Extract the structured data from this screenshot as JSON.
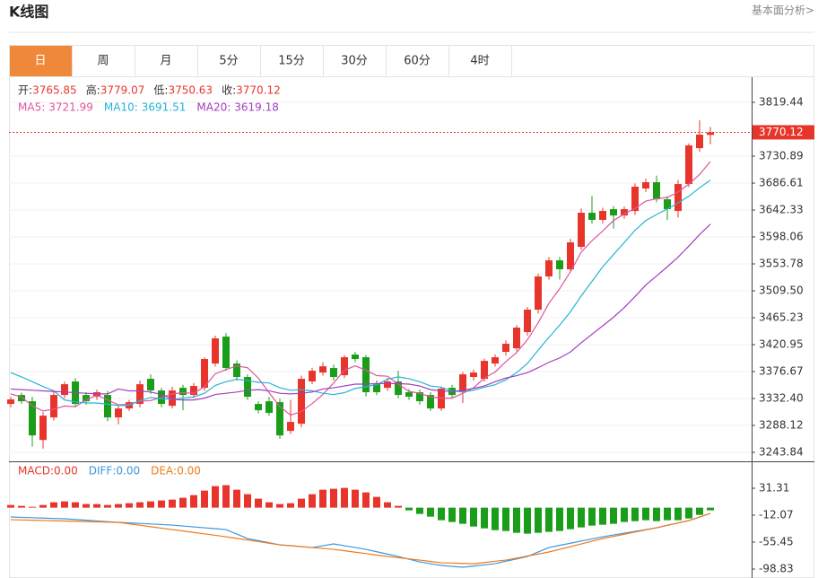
{
  "header": {
    "title": "K线图",
    "link": "基本面分析>"
  },
  "tabs": [
    "日",
    "周",
    "月",
    "5分",
    "15分",
    "30分",
    "60分",
    "4时"
  ],
  "active_tab": 0,
  "chart_data": [
    {
      "type": "candlestick",
      "ohlc_labels": [
        "开",
        "高",
        "低",
        "收"
      ],
      "legend_separator": ":",
      "up_color": "#e8352b",
      "down_color": "#1a9e1a",
      "open": [
        3323.5,
        3338.2,
        3327.9,
        3264.3,
        3301.3,
        3338.2,
        3360.4,
        3338.2,
        3335.3,
        3338.2,
        3301.3,
        3316,
        3323.5,
        3364.8,
        3345.6,
        3320.5,
        3350,
        3338.2,
        3350,
        3389.9,
        3434.2,
        3389.9,
        3367.8,
        3323.5,
        3327.9,
        3326.4,
        3279.1,
        3290.9,
        3360.4,
        3375.1,
        3382.5,
        3370.7,
        3404.7,
        3400.3,
        3355.9,
        3350,
        3360.4,
        3342.7,
        3342.7,
        3338.2,
        3316,
        3350,
        3342.7,
        3367.8,
        3364.8,
        3389.9,
        3409.1,
        3415,
        3441.6,
        3478.5,
        3533.1,
        3559.6,
        3544.9,
        3581.8,
        3637.9,
        3626.1,
        3643.8,
        3633.4,
        3640.8,
        3677.7,
        3688.1,
        3660,
        3640.8,
        3685.1,
        3744.1,
        3765.85
      ],
      "high": [
        3335,
        3342,
        3335,
        3310,
        3345,
        3360,
        3366,
        3343,
        3347,
        3345,
        3320,
        3330,
        3362,
        3372,
        3350,
        3352,
        3355,
        3358,
        3400,
        3436,
        3440,
        3395,
        3372,
        3328,
        3335,
        3332,
        3330,
        3370,
        3383,
        3392,
        3388,
        3404,
        3409,
        3404,
        3362,
        3366,
        3378,
        3348,
        3347,
        3343,
        3352,
        3355,
        3376,
        3380,
        3398,
        3405,
        3428,
        3453,
        3483,
        3538,
        3565,
        3565,
        3595,
        3645,
        3665,
        3646,
        3649,
        3648,
        3686,
        3694,
        3699,
        3665,
        3692,
        3752,
        3790,
        3779.07
      ],
      "low": [
        3318,
        3324,
        3253,
        3250,
        3296,
        3333,
        3318,
        3322,
        3330,
        3295,
        3290,
        3312,
        3318,
        3340,
        3318,
        3316,
        3313,
        3333,
        3345,
        3385,
        3378,
        3362,
        3330,
        3308,
        3304,
        3266,
        3274,
        3285,
        3356,
        3370,
        3362,
        3366,
        3392,
        3336,
        3338,
        3345,
        3333,
        3330,
        3322,
        3312,
        3312,
        3333,
        3325,
        3362,
        3360,
        3385,
        3403,
        3410,
        3436,
        3472,
        3528,
        3528,
        3540,
        3577,
        3620,
        3620,
        3612,
        3628,
        3634,
        3672,
        3655,
        3626,
        3630,
        3680,
        3738,
        3750.63
      ],
      "close": [
        3330.9,
        3327.9,
        3271.7,
        3304.2,
        3338.2,
        3355.9,
        3323.5,
        3327.9,
        3342.7,
        3301.3,
        3316,
        3326.4,
        3355.9,
        3345.6,
        3323.5,
        3345.6,
        3338.2,
        3353,
        3397.3,
        3431.3,
        3382.5,
        3367.8,
        3335.3,
        3313.1,
        3308.7,
        3271.7,
        3293.9,
        3364.8,
        3378.1,
        3385.4,
        3367.8,
        3400.3,
        3397.3,
        3342.7,
        3342.7,
        3360.4,
        3338.2,
        3335.3,
        3327.9,
        3316,
        3348.6,
        3338.2,
        3372.2,
        3375.1,
        3394.3,
        3400.3,
        3422.4,
        3449,
        3478.5,
        3533.1,
        3559.6,
        3544.9,
        3589.2,
        3637.9,
        3626.1,
        3640.8,
        3633.4,
        3643.8,
        3680.7,
        3688.1,
        3660,
        3643.8,
        3685.1,
        3748.6,
        3766.3,
        3770.12
      ],
      "series": [
        {
          "name": "MA5",
          "color": "#e0559f",
          "values": [
            3340,
            3335,
            3320,
            3312,
            3315,
            3320,
            3319,
            3330,
            3338,
            3330,
            3322,
            3323,
            3328,
            3329,
            3334,
            3340,
            3342,
            3341,
            3352,
            3373,
            3380,
            3386,
            3383,
            3366,
            3342,
            3319,
            3305,
            3311,
            3324,
            3339,
            3358,
            3379,
            3386,
            3379,
            3370,
            3369,
            3356,
            3344,
            3341,
            3335,
            3333,
            3333,
            3341,
            3350,
            3366,
            3376,
            3393,
            3408,
            3429,
            3457,
            3489,
            3513,
            3541,
            3573,
            3592,
            3608,
            3625,
            3636,
            3645,
            3657,
            3661,
            3663,
            3672,
            3685,
            3701,
            3721.99
          ]
        },
        {
          "name": "MA10",
          "color": "#27b3d6",
          "values": [
            3375,
            3368,
            3360,
            3352,
            3345,
            3330,
            3327,
            3325,
            3325,
            3323,
            3321,
            3321,
            3329,
            3334,
            3332,
            3331,
            3333,
            3335,
            3341,
            3354,
            3360,
            3364,
            3362,
            3359,
            3358,
            3350,
            3346,
            3347,
            3345,
            3341,
            3339,
            3342,
            3349,
            3352,
            3355,
            3364,
            3368,
            3365,
            3360,
            3353,
            3351,
            3345,
            3343,
            3346,
            3351,
            3355,
            3363,
            3375,
            3390,
            3412,
            3433,
            3453,
            3475,
            3501,
            3525,
            3549,
            3569,
            3589,
            3609,
            3625,
            3635,
            3644,
            3654,
            3665,
            3679,
            3691.51
          ]
        },
        {
          "name": "MA20",
          "color": "#a43dbf",
          "values": [
            3348,
            3347,
            3346,
            3345,
            3344,
            3343,
            3342,
            3341,
            3340,
            3340,
            3348,
            3345,
            3345,
            3343,
            3339,
            3331,
            3330,
            3330,
            3333,
            3339,
            3341,
            3343,
            3346,
            3347,
            3345,
            3341,
            3340,
            3341,
            3343,
            3348,
            3350,
            3353,
            3356,
            3356,
            3357,
            3357,
            3357,
            3356,
            3353,
            3347,
            3345,
            3344,
            3346,
            3349,
            3353,
            3360,
            3366,
            3370,
            3375,
            3383,
            3392,
            3399,
            3409,
            3424,
            3438,
            3452,
            3466,
            3482,
            3500,
            3519,
            3534,
            3549,
            3565,
            3583,
            3602,
            3619.18
          ]
        }
      ],
      "ylim": [
        3229.1,
        3860.8
      ],
      "yticks": [
        3819.44,
        3730.89,
        3686.61,
        3642.33,
        3598.06,
        3553.78,
        {
          "value": 3509.5,
          "label": "3509.50"
        },
        3465.23,
        3420.95,
        3376.67,
        {
          "value": 3332.4,
          "label": "3332.40"
        },
        3288.12,
        3243.84
      ],
      "grid": true
    },
    {
      "type": "macd",
      "name": "MACD",
      "legend_value": "0.00",
      "legend_separator": ":",
      "up_color": "#e8352b",
      "down_color": "#1a9e1a",
      "values": [
        4.3,
        2.9,
        1.4,
        4.3,
        8.7,
        10.1,
        8.7,
        5.8,
        5.8,
        4.3,
        5.8,
        7.2,
        8.7,
        10.1,
        11.6,
        13,
        15.9,
        20.2,
        27.5,
        34.7,
        36.2,
        28.9,
        21.7,
        14.5,
        8.7,
        5.8,
        7.2,
        14.5,
        21.7,
        28.9,
        30.4,
        31.8,
        28.9,
        24.6,
        17.4,
        8.7,
        2.9,
        -4.3,
        -10.1,
        -14.5,
        -20.2,
        -23.1,
        -26,
        -30.4,
        -33.3,
        -36.2,
        -37.6,
        -40.5,
        -41.9,
        -40.5,
        -39,
        -37.6,
        -34.7,
        -31.8,
        -28.9,
        -27.5,
        -26,
        -23.1,
        -21.7,
        -20.2,
        -21.7,
        -20.2,
        -20.2,
        -17.4,
        -11.6,
        -4.3
      ],
      "series": [
        {
          "name": "DIFF",
          "legend_value": "0.00",
          "color": "#3a97e0",
          "values": [
            -15,
            -15.6,
            -16.2,
            -16.8,
            -17.4,
            -17.9,
            -19.1,
            -20.2,
            -21.4,
            -22.6,
            -23.7,
            -24.6,
            -25.4,
            -26.3,
            -27.2,
            -28.1,
            -29.5,
            -31,
            -32.4,
            -33.8,
            -35.3,
            -42.5,
            -49.8,
            -53.1,
            -56.5,
            -59.9,
            -61.3,
            -62.8,
            -64.2,
            -61.3,
            -58.4,
            -61.3,
            -64.2,
            -67.1,
            -71,
            -74.8,
            -78.7,
            -83,
            -87.4,
            -90.3,
            -93.1,
            -94.6,
            -96,
            -94.1,
            -92.1,
            -90.3,
            -86.3,
            -82.6,
            -78.7,
            -71.4,
            -64.2,
            -60.7,
            -57.3,
            -53.8,
            -50.3,
            -46.9,
            -44,
            -41.1,
            -38.2,
            -35.3,
            -32.4,
            -28.5,
            -24.7,
            -20.8,
            -15,
            -9.3
          ]
        },
        {
          "name": "DEA",
          "legend_value": "0.00",
          "color": "#f07a1a",
          "values": [
            -19.4,
            -19.8,
            -20.2,
            -20.7,
            -21.1,
            -21.5,
            -22,
            -22.4,
            -22.8,
            -23.3,
            -23.7,
            -26,
            -28.3,
            -30.7,
            -33,
            -35.3,
            -37.6,
            -39.9,
            -42.2,
            -44.5,
            -46.9,
            -49.5,
            -52.1,
            -54.7,
            -57.3,
            -59.9,
            -61.3,
            -62.8,
            -64.2,
            -65.7,
            -67.1,
            -69.4,
            -71.7,
            -74,
            -76.4,
            -78.7,
            -80.5,
            -82.6,
            -84.5,
            -86.6,
            -88.8,
            -89.2,
            -89.8,
            -90.3,
            -88.4,
            -86.3,
            -84.5,
            -81.3,
            -77.9,
            -74.8,
            -71.4,
            -67.1,
            -62.8,
            -58.4,
            -54.1,
            -49.7,
            -46.3,
            -42.8,
            -39.3,
            -35.9,
            -32.4,
            -28.5,
            -24.7,
            -20.8,
            -15,
            -9.3
          ]
        }
      ],
      "ylim": [
        -113.3,
        73.2
      ],
      "yticks": [
        31.31,
        -12.07,
        -55.45,
        -98.83
      ]
    }
  ]
}
